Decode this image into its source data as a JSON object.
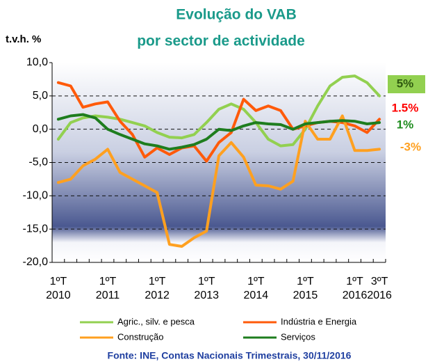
{
  "chart_data": {
    "type": "line",
    "title": "Evolução do VAB",
    "subtitle": "por sector de actividade",
    "y_label": "t.v.h. %",
    "source": "Fonte: INE, Contas Nacionais Trimestrais, 30/11/2016",
    "categories": [
      "1ºT 2010",
      null,
      null,
      null,
      "1ºT 2011",
      null,
      null,
      null,
      "1ºT 2012",
      null,
      null,
      null,
      "1ºT 2013",
      null,
      null,
      null,
      "1ºT 2014",
      null,
      null,
      null,
      "1ºT 2015",
      null,
      null,
      null,
      "1ºT 2016",
      null,
      "3ºT 2016"
    ],
    "series": [
      {
        "name": "Agric., silv. e pesca",
        "color": "#92d050",
        "values": [
          -1.5,
          1,
          1.7,
          2,
          1.8,
          1.5,
          1,
          0.5,
          -0.5,
          -1.2,
          -1.3,
          -0.8,
          1,
          3,
          3.8,
          3,
          1,
          -1.5,
          -2.5,
          -2.3,
          0,
          3.5,
          6.5,
          7.8,
          8,
          7,
          5
        ]
      },
      {
        "name": "Indústria e Energia",
        "color": "#ff5a0a",
        "values": [
          7,
          6.5,
          3.3,
          3.8,
          4.1,
          1.2,
          -0.8,
          -4.2,
          -2.8,
          -3.8,
          -2.8,
          -2.5,
          -4.8,
          -2,
          -0.5,
          4.5,
          2.8,
          3.5,
          2.8,
          0,
          0.5,
          1,
          1.2,
          1,
          0.5,
          -0.5,
          1.5
        ]
      },
      {
        "name": "Construção",
        "color": "#ffa020",
        "values": [
          -8,
          -7.5,
          -5.5,
          -4.5,
          -3,
          -6.5,
          -7.5,
          -8.5,
          -9.5,
          -17.3,
          -17.6,
          -16.3,
          -15.3,
          -4,
          -2,
          -4.2,
          -8.4,
          -8.5,
          -9,
          -7.8,
          1.2,
          -1.5,
          -1.5,
          2,
          -3.2,
          -3.2,
          -3
        ]
      },
      {
        "name": "Serviços",
        "color": "#1e7d1e",
        "values": [
          1.5,
          2,
          2.2,
          1.7,
          0,
          -0.8,
          -1.5,
          -2.2,
          -2.5,
          -3,
          -2.7,
          -2.3,
          -1.5,
          0,
          -0.2,
          0.5,
          1,
          0.8,
          0.7,
          0,
          0.8,
          1,
          1.2,
          1.3,
          1.2,
          0.8,
          1
        ]
      }
    ],
    "ylim": [
      -20,
      10
    ],
    "yticks": [
      {
        "value": -20,
        "label": "-20,0"
      },
      {
        "value": -15,
        "label": "-15,0"
      },
      {
        "value": -10,
        "label": "-10,0"
      },
      {
        "value": -5,
        "label": "-5,0"
      },
      {
        "value": 0,
        "label": "0,0"
      },
      {
        "value": 5,
        "label": "5,0"
      },
      {
        "value": 10,
        "label": "10,0"
      }
    ],
    "grid": true,
    "legend": "bottom",
    "annotations": [
      {
        "text": "5%",
        "color": "#2f5a10",
        "background": "#92d050"
      },
      {
        "text": "1.5%",
        "color": "#ff0000"
      },
      {
        "text": "1%",
        "color": "#1e8c1e"
      },
      {
        "text": "-3%",
        "color": "#ffa020"
      }
    ]
  }
}
